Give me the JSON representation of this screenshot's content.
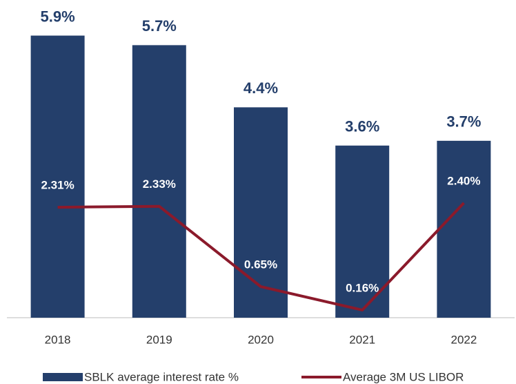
{
  "chart_data": {
    "type": "bar",
    "categories": [
      "2018",
      "2019",
      "2020",
      "2021",
      "2022"
    ],
    "series": [
      {
        "name": "SBLK average interest rate %",
        "type": "bar",
        "color": "#243f6b",
        "values": [
          5.9,
          5.7,
          4.4,
          3.6,
          3.7
        ],
        "value_labels": [
          "5.9%",
          "5.7%",
          "4.4%",
          "3.6%",
          "3.7%"
        ]
      },
      {
        "name": "Average 3M US LIBOR",
        "type": "line",
        "color": "#8b1a2b",
        "values": [
          2.31,
          2.33,
          0.65,
          0.16,
          2.4
        ],
        "value_labels": [
          "2.31%",
          "2.33%",
          "0.65%",
          "0.16%",
          "2.40%"
        ]
      }
    ],
    "ylim": [
      0,
      6.5
    ]
  }
}
